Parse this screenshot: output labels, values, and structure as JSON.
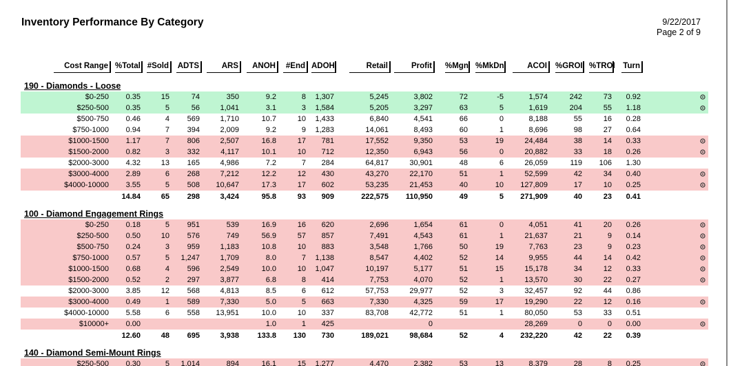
{
  "header": {
    "title": "Inventory Performance By Category",
    "date": "9/22/2017",
    "page": "Page 2 of 9"
  },
  "table": {
    "columns": [
      "Cost Range",
      "%Total",
      "#Sold",
      "ADTS",
      "ARS",
      "ANOH",
      "#End",
      "ADOH",
      "Retail",
      "Profit",
      "%Mgn",
      "%MkDn",
      "ACOI",
      "%GROI",
      "%TROI",
      "Turn"
    ],
    "sections": [
      {
        "name": "190 - Diamonds  - Loose",
        "rows": [
          {
            "cells": [
              "$0-250",
              "0.35",
              "15",
              "74",
              "350",
              "9.2",
              "8",
              "1,307",
              "5,245",
              "3,802",
              "72",
              "-5",
              "1,574",
              "242",
              "73",
              "0.92"
            ],
            "color": "#bff5d2",
            "icon": true
          },
          {
            "cells": [
              "$250-500",
              "0.35",
              "5",
              "56",
              "1,041",
              "3.1",
              "3",
              "1,584",
              "5,205",
              "3,297",
              "63",
              "5",
              "1,619",
              "204",
              "55",
              "1.18"
            ],
            "color": "#bff5d2",
            "icon": true
          },
          {
            "cells": [
              "$500-750",
              "0.46",
              "4",
              "569",
              "1,710",
              "10.7",
              "10",
              "1,433",
              "6,840",
              "4,541",
              "66",
              "0",
              "8,188",
              "55",
              "16",
              "0.28"
            ],
            "color": null,
            "icon": false
          },
          {
            "cells": [
              "$750-1000",
              "0.94",
              "7",
              "394",
              "2,009",
              "9.2",
              "9",
              "1,283",
              "14,061",
              "8,493",
              "60",
              "1",
              "8,696",
              "98",
              "27",
              "0.64"
            ],
            "color": null,
            "icon": false
          },
          {
            "cells": [
              "$1000-1500",
              "1.17",
              "7",
              "806",
              "2,507",
              "16.8",
              "17",
              "781",
              "17,552",
              "9,350",
              "53",
              "19",
              "24,484",
              "38",
              "14",
              "0.33"
            ],
            "color": "#f9c9c9",
            "icon": true
          },
          {
            "cells": [
              "$1500-2000",
              "0.82",
              "3",
              "332",
              "4,117",
              "10.1",
              "10",
              "712",
              "12,350",
              "6,943",
              "56",
              "0",
              "20,882",
              "33",
              "18",
              "0.26"
            ],
            "color": "#f9c9c9",
            "icon": true
          },
          {
            "cells": [
              "$2000-3000",
              "4.32",
              "13",
              "165",
              "4,986",
              "7.2",
              "7",
              "284",
              "64,817",
              "30,901",
              "48",
              "6",
              "26,059",
              "119",
              "106",
              "1.30"
            ],
            "color": null,
            "icon": false
          },
          {
            "cells": [
              "$3000-4000",
              "2.89",
              "6",
              "268",
              "7,212",
              "12.2",
              "12",
              "430",
              "43,270",
              "22,170",
              "51",
              "1",
              "52,599",
              "42",
              "34",
              "0.40"
            ],
            "color": "#f9c9c9",
            "icon": true
          },
          {
            "cells": [
              "$4000-10000",
              "3.55",
              "5",
              "508",
              "10,647",
              "17.3",
              "17",
              "602",
              "53,235",
              "21,453",
              "40",
              "10",
              "127,809",
              "17",
              "10",
              "0.25"
            ],
            "color": "#f9c9c9",
            "icon": true
          }
        ],
        "total": [
          null,
          "14.84",
          "65",
          "298",
          "3,424",
          "95.8",
          "93",
          "909",
          "222,575",
          "110,950",
          "49",
          "5",
          "271,909",
          "40",
          "23",
          "0.41"
        ]
      },
      {
        "name": "100 - Diamond Engagement Rings",
        "rows": [
          {
            "cells": [
              "$0-250",
              "0.18",
              "5",
              "951",
              "539",
              "16.9",
              "16",
              "620",
              "2,696",
              "1,654",
              "61",
              "0",
              "4,051",
              "41",
              "20",
              "0.26"
            ],
            "color": "#f9c9c9",
            "icon": true
          },
          {
            "cells": [
              "$250-500",
              "0.50",
              "10",
              "576",
              "749",
              "56.9",
              "57",
              "857",
              "7,491",
              "4,543",
              "61",
              "1",
              "21,637",
              "21",
              "9",
              "0.14"
            ],
            "color": "#f9c9c9",
            "icon": true
          },
          {
            "cells": [
              "$500-750",
              "0.24",
              "3",
              "959",
              "1,183",
              "10.8",
              "10",
              "883",
              "3,548",
              "1,766",
              "50",
              "19",
              "7,763",
              "23",
              "9",
              "0.23"
            ],
            "color": "#f9c9c9",
            "icon": true
          },
          {
            "cells": [
              "$750-1000",
              "0.57",
              "5",
              "1,247",
              "1,709",
              "8.0",
              "7",
              "1,138",
              "8,547",
              "4,402",
              "52",
              "14",
              "9,955",
              "44",
              "14",
              "0.42"
            ],
            "color": "#f9c9c9",
            "icon": true
          },
          {
            "cells": [
              "$1000-1500",
              "0.68",
              "4",
              "596",
              "2,549",
              "10.0",
              "10",
              "1,047",
              "10,197",
              "5,177",
              "51",
              "15",
              "15,178",
              "34",
              "12",
              "0.33"
            ],
            "color": "#f9c9c9",
            "icon": true
          },
          {
            "cells": [
              "$1500-2000",
              "0.52",
              "2",
              "297",
              "3,877",
              "6.8",
              "8",
              "414",
              "7,753",
              "4,070",
              "52",
              "1",
              "13,570",
              "30",
              "22",
              "0.27"
            ],
            "color": "#f9c9c9",
            "icon": true
          },
          {
            "cells": [
              "$2000-3000",
              "3.85",
              "12",
              "568",
              "4,813",
              "8.5",
              "6",
              "612",
              "57,753",
              "29,977",
              "52",
              "3",
              "32,457",
              "92",
              "44",
              "0.86"
            ],
            "color": null,
            "icon": false
          },
          {
            "cells": [
              "$3000-4000",
              "0.49",
              "1",
              "589",
              "7,330",
              "5.0",
              "5",
              "663",
              "7,330",
              "4,325",
              "59",
              "17",
              "19,290",
              "22",
              "12",
              "0.16"
            ],
            "color": "#f9c9c9",
            "icon": true
          },
          {
            "cells": [
              "$4000-10000",
              "5.58",
              "6",
              "558",
              "13,951",
              "10.0",
              "10",
              "337",
              "83,708",
              "42,772",
              "51",
              "1",
              "80,050",
              "53",
              "33",
              "0.51"
            ],
            "color": null,
            "icon": false
          },
          {
            "cells": [
              "$10000+",
              "0.00",
              null,
              null,
              null,
              "1.0",
              "1",
              "425",
              null,
              "0",
              null,
              null,
              "28,269",
              "0",
              "0",
              "0.00"
            ],
            "color": "#f9c9c9",
            "icon": true
          }
        ],
        "total": [
          null,
          "12.60",
          "48",
          "695",
          "3,938",
          "133.8",
          "130",
          "730",
          "189,021",
          "98,684",
          "52",
          "4",
          "232,220",
          "42",
          "22",
          "0.39"
        ]
      },
      {
        "name": "140 - Diamond Semi-Mount Rings",
        "rows": [
          {
            "cells": [
              "$250-500",
              "0.30",
              "5",
              "1,014",
              "894",
              "16.1",
              "15",
              "1,277",
              "4,470",
              "2,382",
              "53",
              "13",
              "8,379",
              "28",
              "8",
              "0.25"
            ],
            "color": "#f9c9c9",
            "icon": true
          }
        ],
        "total": null
      }
    ]
  }
}
